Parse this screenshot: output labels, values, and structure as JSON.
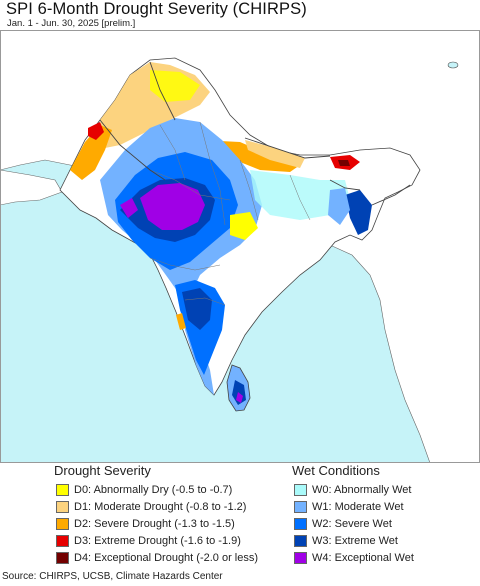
{
  "title": "SPI 6-Month Drought Severity (CHIRPS)",
  "subtitle": "Jan. 1 - Jun. 30, 2025 [prelim.]",
  "source": "Source: CHIRPS, UCSB, Climate Hazards Center",
  "colors": {
    "ocean": "#c6f3f8",
    "land_outside": "#ffffff",
    "land_normal": "#ffffff",
    "border": "#444444"
  },
  "legend": {
    "drought": {
      "title": "Drought Severity",
      "items": [
        {
          "code": "D0",
          "label": "D0: Abnormally Dry (-0.5 to -0.7)",
          "color": "#ffff00"
        },
        {
          "code": "D1",
          "label": "D1: Moderate Drought (-0.8 to -1.2)",
          "color": "#fcd37f"
        },
        {
          "code": "D2",
          "label": "D2: Severe Drought (-1.3 to -1.5)",
          "color": "#ffaa00"
        },
        {
          "code": "D3",
          "label": "D3: Extreme Drought (-1.6 to -1.9)",
          "color": "#e60000"
        },
        {
          "code": "D4",
          "label": "D4: Exceptional Drought (-2.0 or less)",
          "color": "#730000"
        }
      ]
    },
    "wet": {
      "title": "Wet Conditions",
      "items": [
        {
          "code": "W0",
          "label": "W0: Abnormally Wet",
          "color": "#aafafa"
        },
        {
          "code": "W1",
          "label": "W1: Moderate Wet",
          "color": "#73b2ff"
        },
        {
          "code": "W2",
          "label": "W2: Severe Wet",
          "color": "#0070ff"
        },
        {
          "code": "W3",
          "label": "W3: Extreme Wet",
          "color": "#0042b4"
        },
        {
          "code": "W4",
          "label": "W4: Exceptional Wet",
          "color": "#a000e6"
        }
      ]
    }
  }
}
